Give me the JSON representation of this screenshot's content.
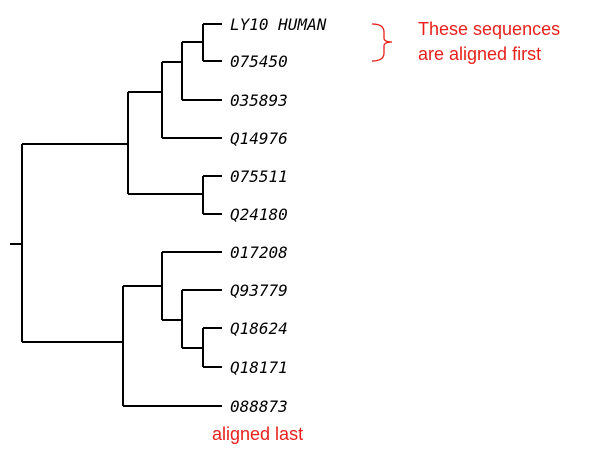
{
  "tree": {
    "leaves": [
      "LY10 HUMAN",
      "075450",
      "035893",
      "Q14976",
      "075511",
      "Q24180",
      "017208",
      "Q93779",
      "Q18624",
      "Q18171",
      "088873"
    ]
  },
  "annotations": {
    "first_line1": "These sequences",
    "first_line2": "are aligned first",
    "last": "aligned last",
    "color": "#e8201c"
  }
}
